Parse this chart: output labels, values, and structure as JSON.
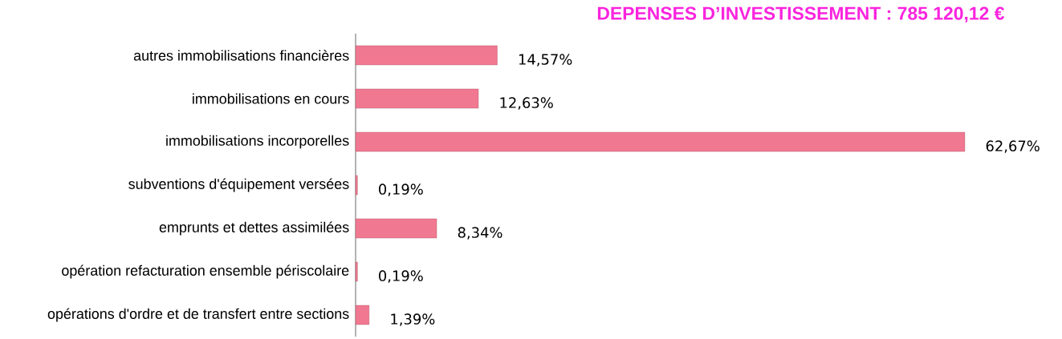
{
  "chart_data": {
    "type": "bar",
    "orientation": "horizontal",
    "title": "DEPENSES D’INVESTISSEMENT : 785 120,12 €",
    "categories": [
      "autres immobilisations financières",
      "immobilisations en cours",
      "immobilisations incorporelles",
      "subventions d'équipement versées",
      "emprunts et dettes assimilées",
      "opération refacturation ensemble périscolaire",
      "opérations d'ordre et de transfert entre sections"
    ],
    "values": [
      14.57,
      12.63,
      62.67,
      0.19,
      8.34,
      0.19,
      1.39
    ],
    "value_labels": [
      "14,57%",
      "12,63%",
      "62,67%",
      "0,19%",
      "8,34%",
      "0,19%",
      "1,39%"
    ],
    "color": "#f07890"
  }
}
